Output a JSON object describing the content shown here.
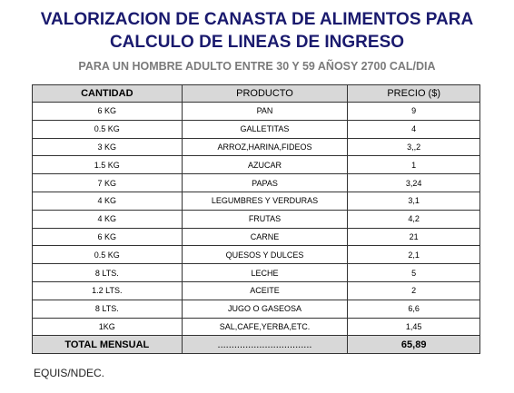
{
  "header": {
    "title": [
      "VALORIZACION DE CANASTA DE ALIMENTOS PARA",
      "CALCULO DE LINEAS DE INGRESO"
    ],
    "subtitle": "PARA UN HOMBRE ADULTO ENTRE 30 Y 59 AÑOSY 2700 CAL/DIA"
  },
  "table": {
    "columns": [
      "CANTIDAD",
      "PRODUCTO",
      "PRECIO ($)"
    ],
    "rows": [
      [
        "6 KG",
        "PAN",
        "9"
      ],
      [
        "0.5 KG",
        "GALLETITAS",
        "4"
      ],
      [
        "3 KG",
        "ARROZ,HARINA,FIDEOS",
        "3,,2"
      ],
      [
        "1.5 KG",
        "AZUCAR",
        "1"
      ],
      [
        "7 KG",
        "PAPAS",
        "3,24"
      ],
      [
        "4 KG",
        "LEGUMBRES Y VERDURAS",
        "3,1"
      ],
      [
        "4 KG",
        "FRUTAS",
        "4,2"
      ],
      [
        "6 KG",
        "CARNE",
        "21"
      ],
      [
        "0.5 KG",
        "QUESOS Y DULCES",
        "2,1"
      ],
      [
        "8 LTS.",
        "LECHE",
        "5"
      ],
      [
        "1.2 LTS.",
        "ACEITE",
        "2"
      ],
      [
        "8 LTS.",
        "JUGO O GASEOSA",
        "6,6"
      ],
      [
        "1KG",
        "SAL,CAFE,YERBA,ETC.",
        "1,45"
      ]
    ],
    "total": [
      "TOTAL MENSUAL",
      "..................................",
      "65,89"
    ]
  },
  "footer": "EQUIS/NDEC."
}
